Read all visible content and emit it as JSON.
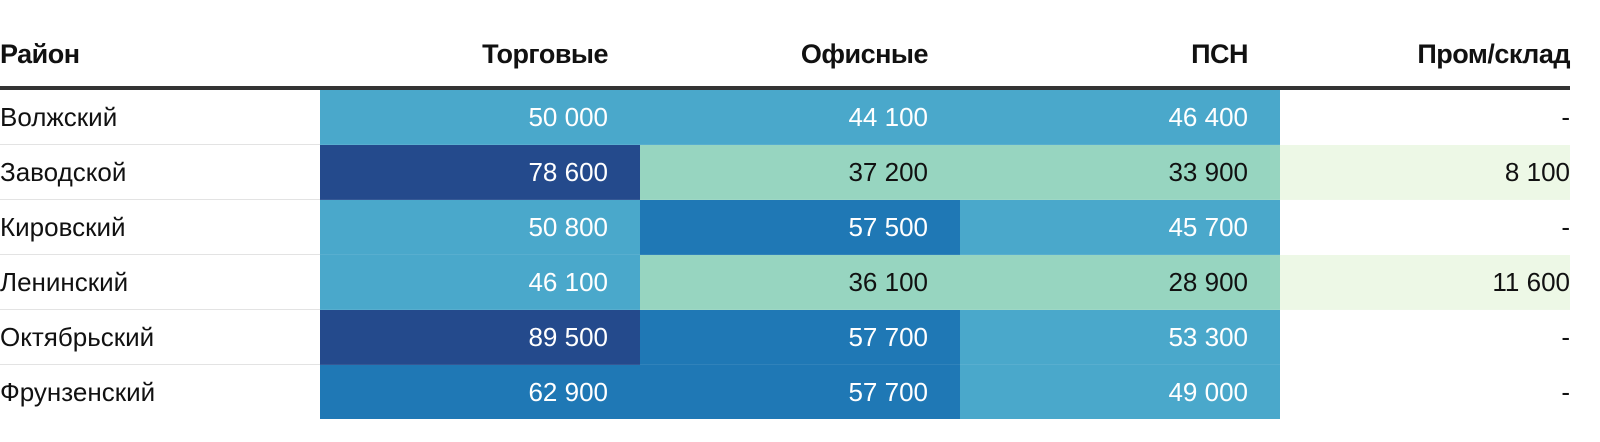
{
  "chart_data": {
    "type": "table",
    "columns": [
      "Район",
      "Торговые",
      "Офисные",
      "ПСН",
      "Пром/склад"
    ],
    "rows": [
      {
        "district": "Волжский",
        "values": [
          "50 000",
          "44 100",
          "46 400",
          "-"
        ],
        "numeric": [
          50000,
          44100,
          46400,
          null
        ]
      },
      {
        "district": "Заводской",
        "values": [
          "78 600",
          "37 200",
          "33 900",
          "8 100"
        ],
        "numeric": [
          78600,
          37200,
          33900,
          8100
        ]
      },
      {
        "district": "Кировский",
        "values": [
          "50 800",
          "57 500",
          "45 700",
          "-"
        ],
        "numeric": [
          50800,
          57500,
          45700,
          null
        ]
      },
      {
        "district": "Ленинский",
        "values": [
          "46 100",
          "36 100",
          "28 900",
          "11 600"
        ],
        "numeric": [
          46100,
          36100,
          28900,
          11600
        ]
      },
      {
        "district": "Октябрьский",
        "values": [
          "89 500",
          "57 700",
          "53 300",
          "-"
        ],
        "numeric": [
          89500,
          57700,
          53300,
          null
        ]
      },
      {
        "district": "Фрунзенский",
        "values": [
          "62 900",
          "57 700",
          "49 000",
          "-"
        ],
        "numeric": [
          62900,
          57700,
          49000,
          null
        ]
      }
    ],
    "color_scale": {
      "bins": [
        {
          "min": 0,
          "max": 20000,
          "bg": "#edf8e6",
          "text": "#111111"
        },
        {
          "min": 20000,
          "max": 40000,
          "bg": "#97d5c0",
          "text": "#111111"
        },
        {
          "min": 40000,
          "max": 55000,
          "bg": "#4aa8cb",
          "text": "#ffffff"
        },
        {
          "min": 55000,
          "max": 75000,
          "bg": "#1f78b5",
          "text": "#ffffff"
        },
        {
          "min": 75000,
          "max": 100000,
          "bg": "#244a8c",
          "text": "#ffffff"
        }
      ],
      "missing": {
        "bg": "#ffffff",
        "text": "#111111"
      }
    }
  }
}
